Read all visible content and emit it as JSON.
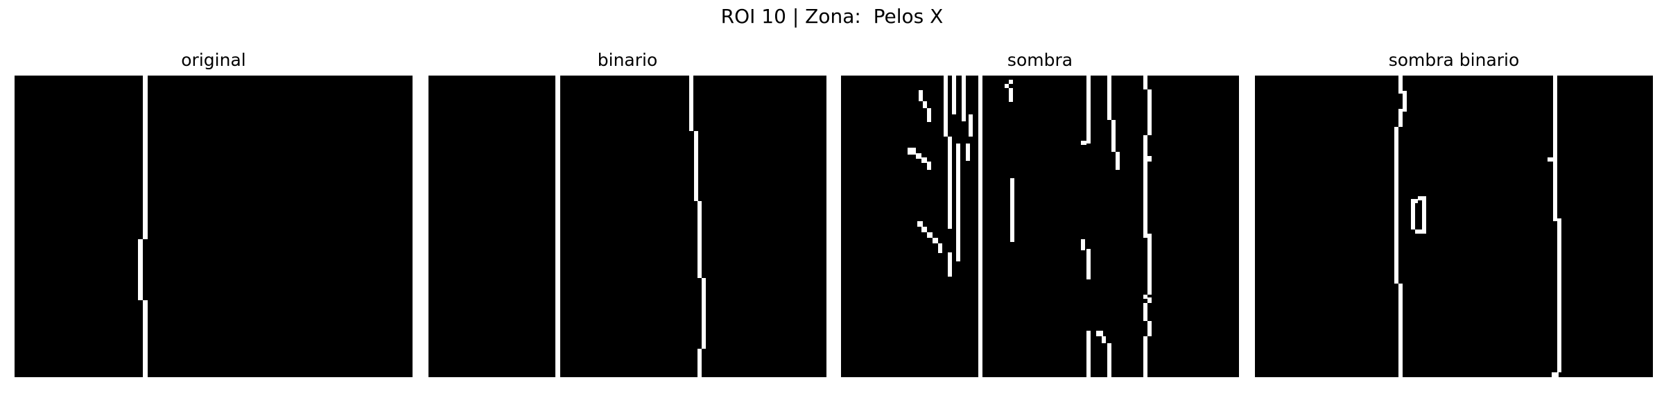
{
  "figure": {
    "title": "ROI 10 | Zona:  Pelos X",
    "background": "#000000",
    "foreground": "#ffffff"
  },
  "panels": [
    {
      "title": "original"
    },
    {
      "title": "binario"
    },
    {
      "title": "sombra"
    },
    {
      "title": "sombra binario"
    }
  ]
}
